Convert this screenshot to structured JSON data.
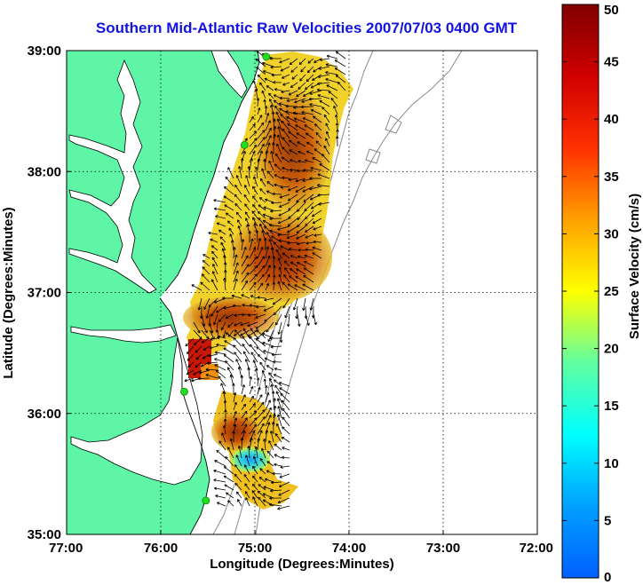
{
  "title": "Southern Mid-Atlantic Raw Velocities 2007/07/03 0400 GMT",
  "x_axis": {
    "label": "Longitude (Degrees:Minutes)",
    "ticks": [
      {
        "value": -77,
        "label": "77:00"
      },
      {
        "value": -76,
        "label": "76:00"
      },
      {
        "value": -75,
        "label": "75:00"
      },
      {
        "value": -74,
        "label": "74:00"
      },
      {
        "value": -73,
        "label": "73:00"
      },
      {
        "value": -72,
        "label": "72:00"
      }
    ],
    "range": [
      -77,
      -72
    ]
  },
  "y_axis": {
    "label": "Latitude (Degrees:Minutes)",
    "ticks": [
      {
        "value": 35,
        "label": "35:00"
      },
      {
        "value": 36,
        "label": "36:00"
      },
      {
        "value": 37,
        "label": "37:00"
      },
      {
        "value": 38,
        "label": "38:00"
      },
      {
        "value": 39,
        "label": "39:00"
      }
    ],
    "range": [
      35,
      39
    ]
  },
  "colorbar": {
    "label": "Surface Velocity (cm/s)",
    "min": 0,
    "max": 50,
    "ticks": [
      {
        "value": 0,
        "label": "0"
      },
      {
        "value": 5,
        "label": "5"
      },
      {
        "value": 10,
        "label": "10"
      },
      {
        "value": 15,
        "label": "15"
      },
      {
        "value": 20,
        "label": "20"
      },
      {
        "value": 25,
        "label": "25"
      },
      {
        "value": 30,
        "label": "30"
      },
      {
        "value": 35,
        "label": "35"
      },
      {
        "value": 40,
        "label": "40"
      },
      {
        "value": 45,
        "label": "45"
      },
      {
        "value": 50,
        "label": "50"
      }
    ],
    "colormap": "jet"
  },
  "colors": {
    "land": "#5ef5a6",
    "water": "#ffffff",
    "arrows": "#000000",
    "bathymetry": "#8a8a8a",
    "radar_sites": "#22dd22",
    "title": "#1414e0"
  },
  "grid": true,
  "radar_sites": [
    {
      "lon": -74.88,
      "lat": 38.95
    },
    {
      "lon": -75.11,
      "lat": 38.22
    },
    {
      "lon": -75.75,
      "lat": 36.18
    },
    {
      "lon": -75.52,
      "lat": 35.28
    }
  ]
}
